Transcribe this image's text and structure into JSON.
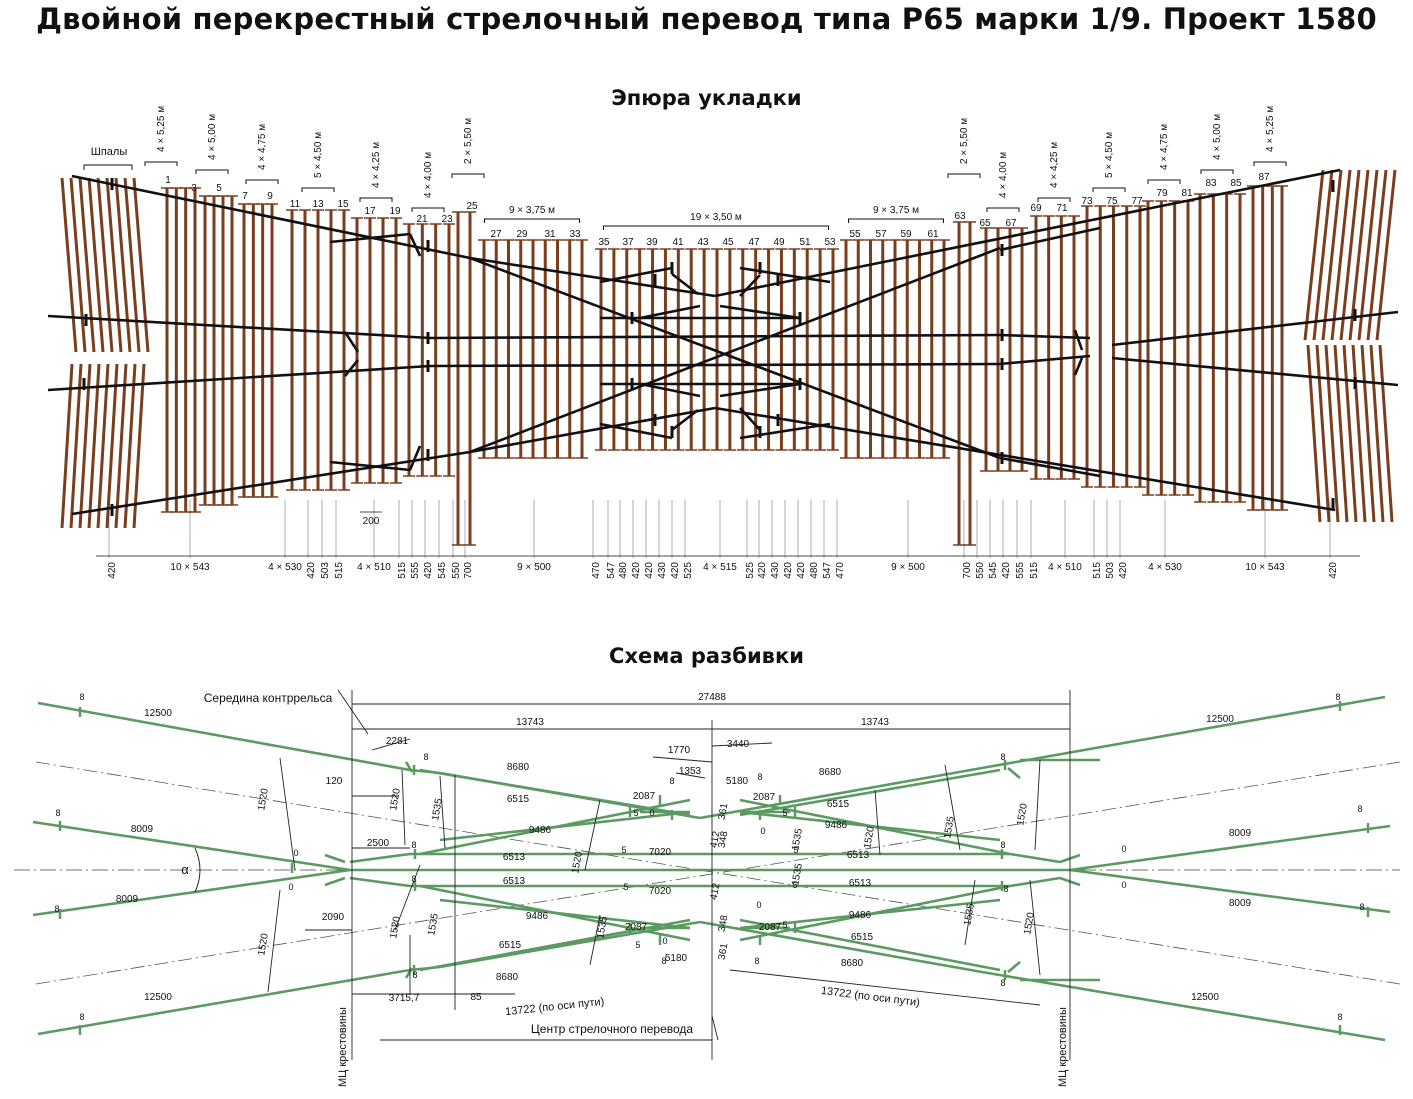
{
  "title": "Двойной перекрестный стрелочный перевод типа Р65 марки 1/9. Проект 1580",
  "layout": {
    "title": "Эпюра укладки",
    "sleepers_label": "Шпалы",
    "group_labels": [
      "4 × 5,25 м",
      "4 × 5,00 м",
      "4 × 4,75 м",
      "5 × 4,50 м",
      "4 × 4,25 м",
      "4 × 4,00 м",
      "2 × 5,50 м",
      "9 × 3,75 м",
      "19 × 3,50 м",
      "9 × 3,75 м",
      "2 × 5,50 м",
      "4 × 4,00 м",
      "4 × 4,25 м",
      "5 × 4,50 м",
      "4 × 4,75 м",
      "4 × 5,00 м",
      "4 × 5,25 м"
    ],
    "sleeper_numbers": [
      "1",
      "3",
      "5",
      "7",
      "9",
      "11",
      "13",
      "15",
      "17",
      "19",
      "21",
      "23",
      "25",
      "27",
      "29",
      "31",
      "33",
      "35",
      "37",
      "39",
      "41",
      "43",
      "45",
      "47",
      "49",
      "51",
      "53",
      "55",
      "57",
      "59",
      "61",
      "63",
      "65",
      "67",
      "69",
      "71",
      "73",
      "75",
      "77",
      "79",
      "81",
      "83",
      "85",
      "87"
    ],
    "spacings": [
      "420",
      "10 × 543",
      "4 × 530",
      "420",
      "503",
      "515",
      "4 × 510",
      "515",
      "555",
      "420",
      "545",
      "550",
      "700",
      "9 × 500",
      "470",
      "547",
      "480",
      "420",
      "420",
      "430",
      "420",
      "525",
      "4 × 515",
      "525",
      "420",
      "430",
      "420",
      "420",
      "480",
      "547",
      "470",
      "9 × 500",
      "700",
      "550",
      "545",
      "420",
      "555",
      "515",
      "4 × 510",
      "515",
      "503",
      "420",
      "4 × 530",
      "10 × 543",
      "420"
    ],
    "detail_200": "200"
  },
  "scheme": {
    "title": "Схема разбивки",
    "labels": {
      "middle_guard": "Середина контррельса",
      "center": "Центр стрелочного перевода",
      "mc_left": "МЦ крестовины",
      "mc_right": "МЦ крестовины",
      "alpha": "α",
      "axis_note_left": "13722 (по оси пути)",
      "axis_note_right": "13722 (по оси пути)"
    },
    "dims": {
      "total": "27488",
      "half_l": "13743",
      "half_r": "13743",
      "d2281": "2281",
      "d1770": "1770",
      "d3440": "3440",
      "d1353": "1353",
      "d5180": "5180",
      "d120": "120",
      "d2500": "2500",
      "d2090": "2090",
      "d3715": "3715,7",
      "d85": "85",
      "d12500": "12500",
      "d8009": "8009",
      "d8680": "8680",
      "d6515": "6515",
      "d9486": "9486",
      "d6513": "6513",
      "d7020": "7020",
      "d2087": "2087",
      "d1520": "1520",
      "d1535": "1535",
      "d412": "412",
      "d348": "348",
      "d361": "361",
      "d8": "8",
      "d5": "5",
      "d0": "0"
    }
  },
  "colors": {
    "sleeper": "#7a3e1d",
    "rail": "#111111",
    "track": "#5b9a60",
    "dim": "#222222"
  }
}
